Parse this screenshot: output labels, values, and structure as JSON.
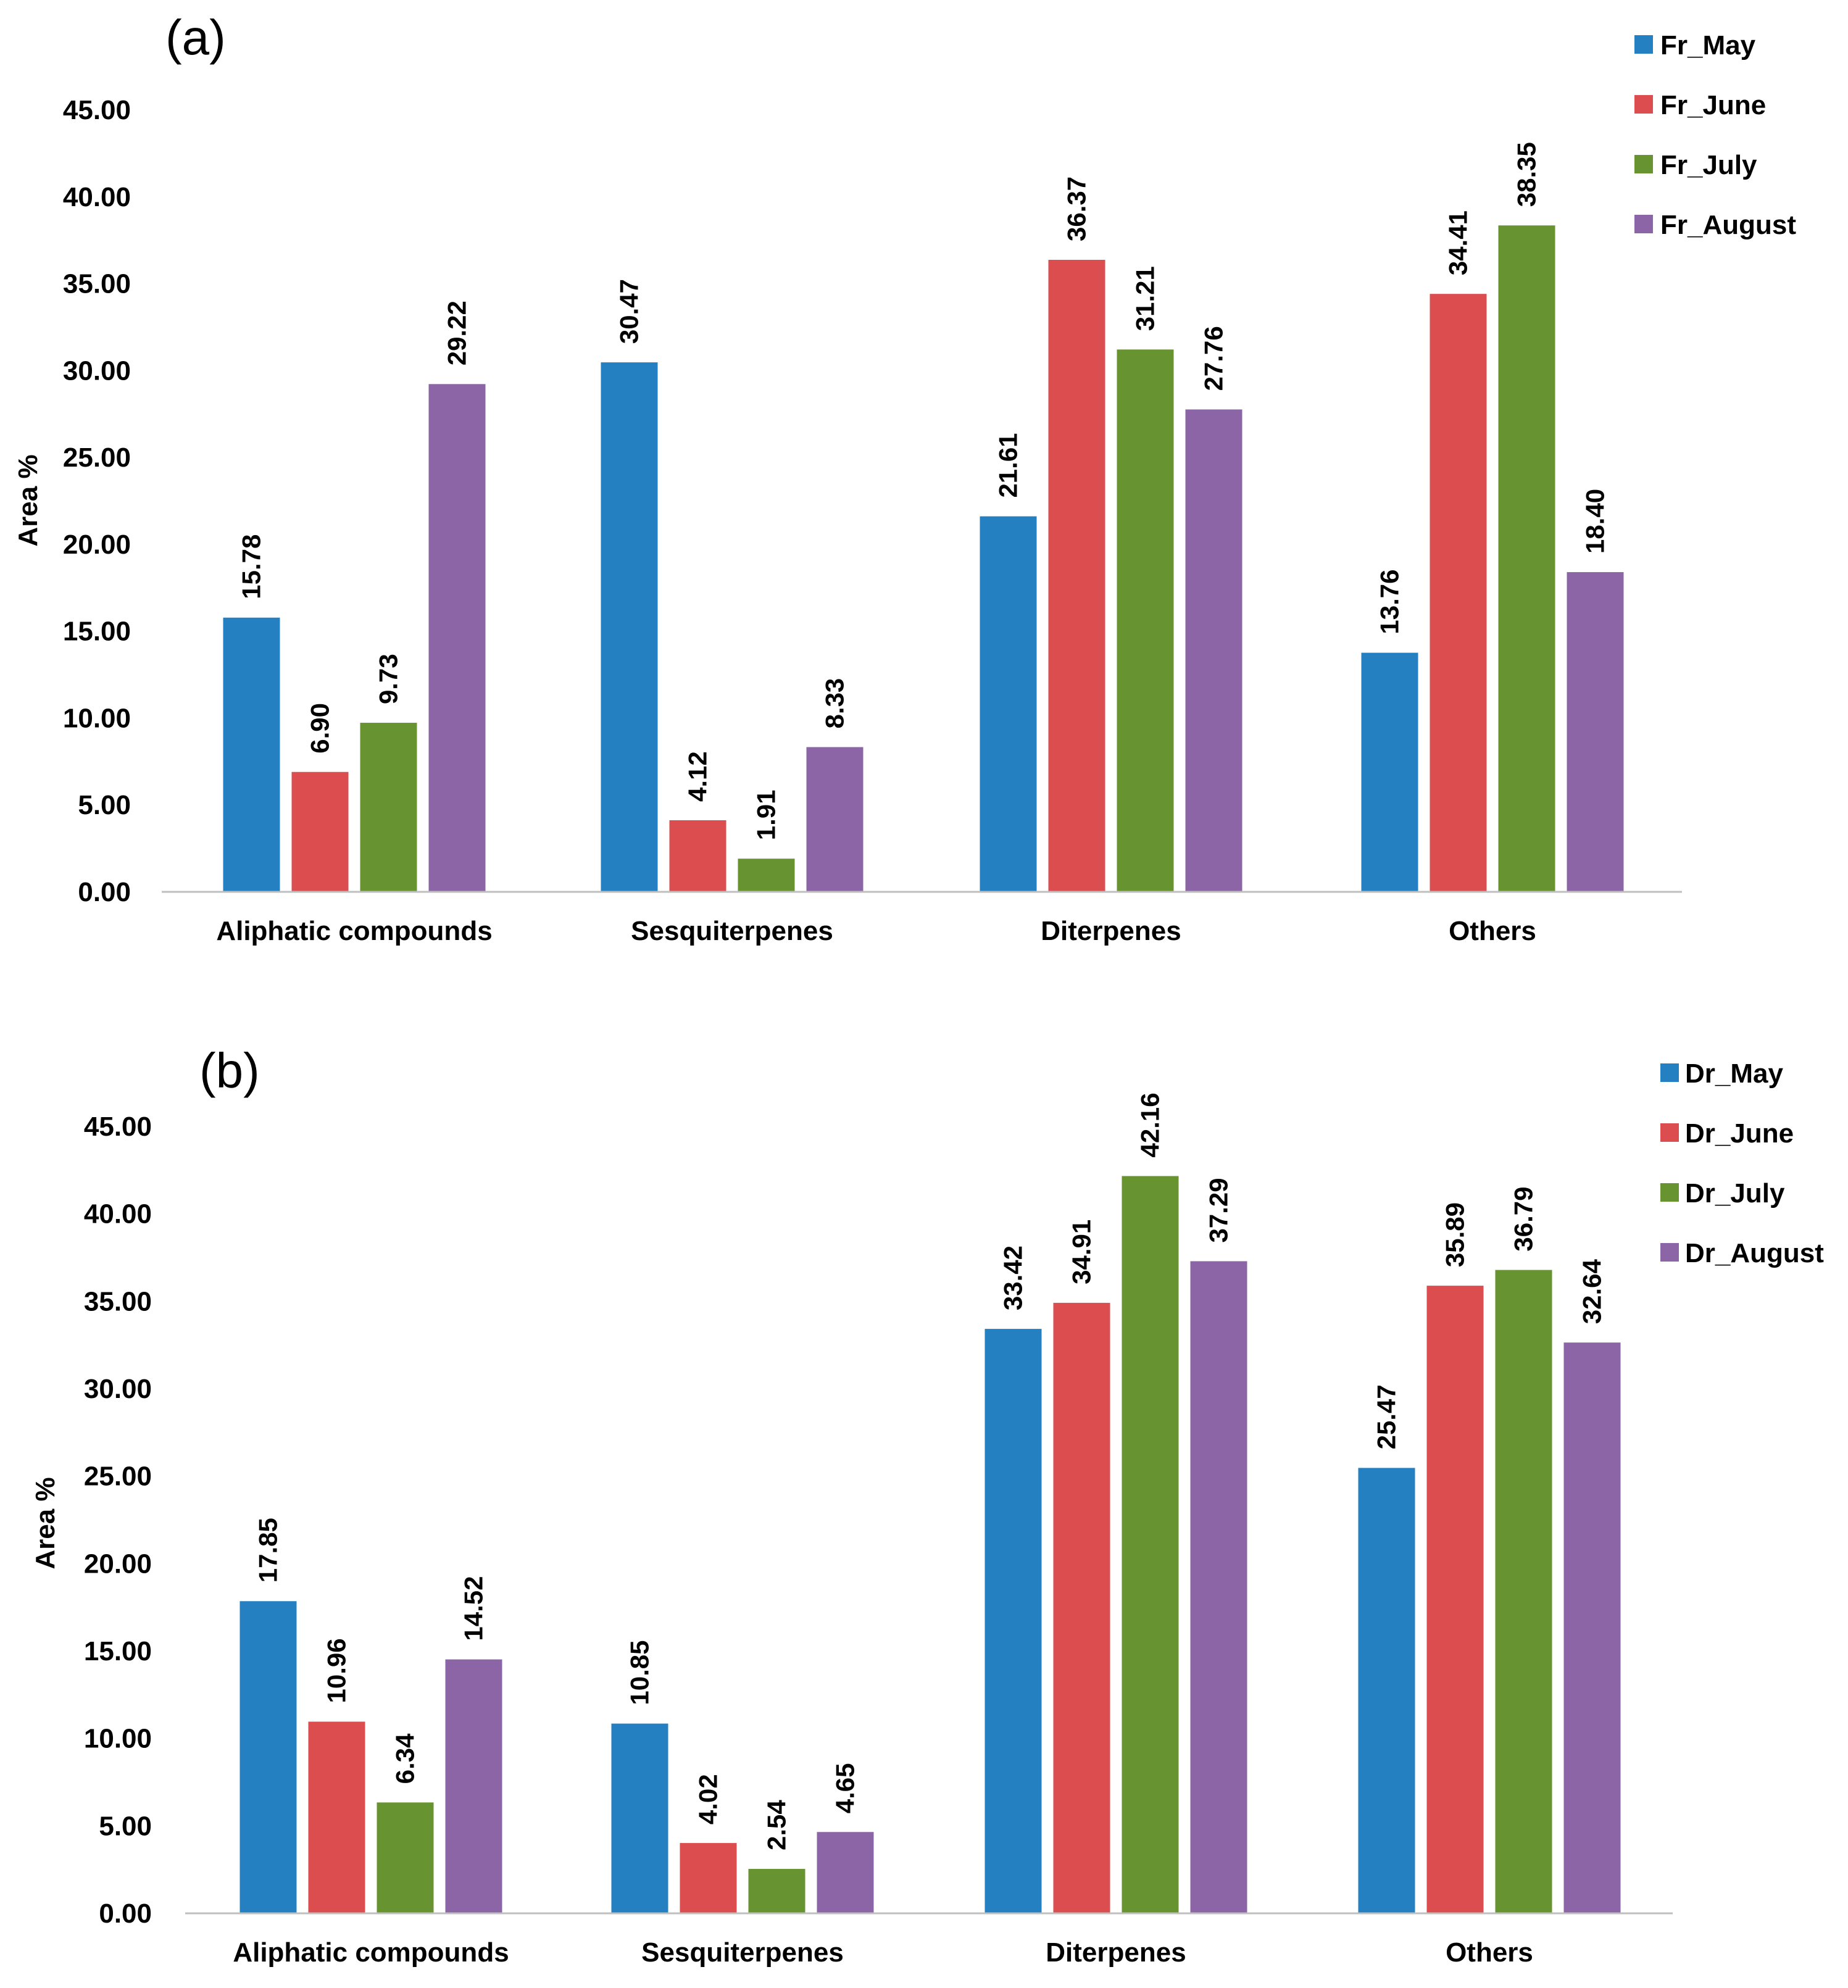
{
  "chart_data": [
    {
      "type": "bar",
      "panel_label": "(a)",
      "ylabel": "Area %",
      "xlabel": "",
      "ylim": [
        0,
        45
      ],
      "yticks": [
        "0.00",
        "5.00",
        "10.00",
        "15.00",
        "20.00",
        "25.00",
        "30.00",
        "35.00",
        "40.00",
        "45.00"
      ],
      "grid": false,
      "legend_position": "top-right",
      "categories": [
        "Aliphatic compounds",
        "Sesquiterpenes",
        "Diterpenes",
        "Others"
      ],
      "series": [
        {
          "name": "Fr_May",
          "color": "#2580C2",
          "values": [
            15.78,
            30.47,
            21.61,
            13.76
          ],
          "labels": [
            "15.78",
            "30.47",
            "21.61",
            "13.76"
          ]
        },
        {
          "name": "Fr_June",
          "color": "#DB4D4F",
          "values": [
            6.9,
            4.12,
            36.37,
            34.41
          ],
          "labels": [
            "6.90",
            "4.12",
            "36.37",
            "34.41"
          ]
        },
        {
          "name": "Fr_July",
          "color": "#679430",
          "values": [
            9.73,
            1.91,
            31.21,
            38.35
          ],
          "labels": [
            "9.73",
            "1.91",
            "31.21",
            "38.35"
          ]
        },
        {
          "name": "Fr_August",
          "color": "#8C65A6",
          "values": [
            29.22,
            8.33,
            27.76,
            18.4
          ],
          "labels": [
            "29.22",
            "8.33",
            "27.76",
            "18.40"
          ]
        }
      ]
    },
    {
      "type": "bar",
      "panel_label": "(b)",
      "ylabel": "Area %",
      "xlabel": "",
      "ylim": [
        0,
        45
      ],
      "yticks": [
        "0.00",
        "5.00",
        "10.00",
        "15.00",
        "20.00",
        "25.00",
        "30.00",
        "35.00",
        "40.00",
        "45.00"
      ],
      "grid": false,
      "legend_position": "top-right",
      "categories": [
        "Aliphatic compounds",
        "Sesquiterpenes",
        "Diterpenes",
        "Others"
      ],
      "series": [
        {
          "name": "Dr_May",
          "color": "#2580C2",
          "values": [
            17.85,
            10.85,
            33.42,
            25.47
          ],
          "labels": [
            "17.85",
            "10.85",
            "33.42",
            "25.47"
          ]
        },
        {
          "name": "Dr_June",
          "color": "#DB4D4F",
          "values": [
            10.96,
            4.02,
            34.91,
            35.89
          ],
          "labels": [
            "10.96",
            "4.02",
            "34.91",
            "35.89"
          ]
        },
        {
          "name": "Dr_July",
          "color": "#679430",
          "values": [
            6.34,
            2.54,
            42.16,
            36.79
          ],
          "labels": [
            "6.34",
            "2.54",
            "42.16",
            "36.79"
          ]
        },
        {
          "name": "Dr_August",
          "color": "#8C65A6",
          "values": [
            14.52,
            4.65,
            37.29,
            32.64
          ],
          "labels": [
            "14.52",
            "4.65",
            "37.29",
            "32.64"
          ]
        }
      ]
    }
  ]
}
